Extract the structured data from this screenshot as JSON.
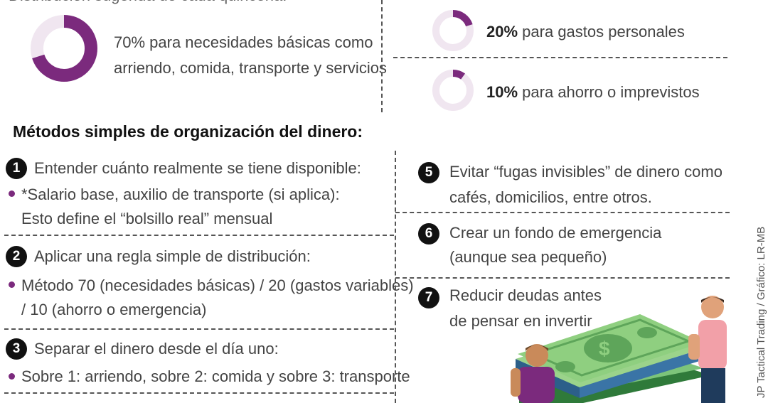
{
  "colors": {
    "accent": "#7b2a7d",
    "ring_bg": "#f0e6f0",
    "text": "#444444"
  },
  "top_cut_text": "Distribución sugerida de cada quincena:",
  "donut_70": {
    "percent": 70,
    "text_line1": "70% para necesidades básicas como",
    "text_line2": "arriendo, comida, transporte y servicios"
  },
  "donut_20": {
    "percent": 20,
    "bold": "20%",
    "text": "para gastos personales"
  },
  "donut_10": {
    "percent": 10,
    "bold": "10%",
    "text": "para ahorro o imprevistos"
  },
  "section_title": "Métodos simples de organización del dinero:",
  "steps_left": [
    {
      "num": "1",
      "title": "Entender cuánto realmente se tiene disponible:",
      "bullet": "*Salario base, auxilio de transporte (si aplica):",
      "extra": "Esto define el “bolsillo real” mensual"
    },
    {
      "num": "2",
      "title": "Aplicar una regla simple de distribución:",
      "bullet": "Método 70 (necesidades básicas) / 20 (gastos variables)",
      "extra": "/ 10 (ahorro o emergencia)"
    },
    {
      "num": "3",
      "title": "Separar el dinero desde el día uno:",
      "bullet": "Sobre 1: arriendo, sobre 2: comida y sobre 3: transporte"
    }
  ],
  "steps_right": [
    {
      "num": "5",
      "line1": "Evitar “fugas invisibles” de dinero como",
      "line2": "cafés, domicilios, entre otros."
    },
    {
      "num": "6",
      "line1": "Crear un fondo de emergencia",
      "line2": "(aunque sea pequeño)"
    },
    {
      "num": "7",
      "line1": "Reducir deudas antes",
      "line2": "de pensar en invertir"
    }
  ],
  "credit": "JP Tactical Trading / Gráfico: LR-MB"
}
